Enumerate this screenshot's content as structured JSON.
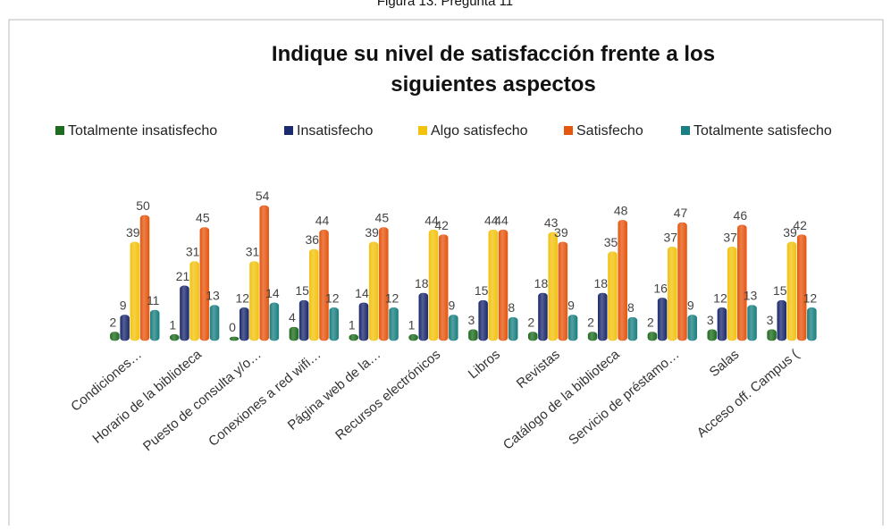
{
  "chart_data": {
    "type": "bar",
    "caption": "Figura 13. Pregunta 11",
    "title": "Indique su nivel de satisfacción frente a los siguientes aspectos",
    "categories": [
      "Condiciones…",
      "Horario de la biblioteca",
      "Puesto de consulta y/o…",
      "Conexiones a red wifi…",
      "Página web de la…",
      "Recursos electrónicos",
      "Libros",
      "Revistas",
      "Catálogo de la biblioteca",
      "Servicio de préstamo…",
      "Salas",
      "Acceso off. Campus ("
    ],
    "series": [
      {
        "name": "Totalmente insatisfecho",
        "color": "#1f6b1f",
        "values": [
          2,
          1,
          0,
          4,
          1,
          1,
          3,
          2,
          2,
          2,
          3,
          3
        ]
      },
      {
        "name": "Insatisfecho",
        "color": "#1c2a6e",
        "values": [
          9,
          21,
          12,
          15,
          14,
          18,
          15,
          18,
          18,
          16,
          12,
          15
        ]
      },
      {
        "name": "Algo satisfecho",
        "color": "#f2c20e",
        "values": [
          39,
          31,
          31,
          36,
          39,
          44,
          44,
          43,
          35,
          37,
          37,
          39
        ]
      },
      {
        "name": "Satisfecho",
        "color": "#e5560f",
        "values": [
          50,
          45,
          54,
          44,
          45,
          42,
          44,
          39,
          48,
          47,
          46,
          42
        ]
      },
      {
        "name": "Totalmente satisfecho",
        "color": "#1a7f80",
        "values": [
          11,
          13,
          14,
          12,
          12,
          9,
          8,
          9,
          8,
          9,
          13,
          12
        ]
      }
    ],
    "legend": "top"
  }
}
